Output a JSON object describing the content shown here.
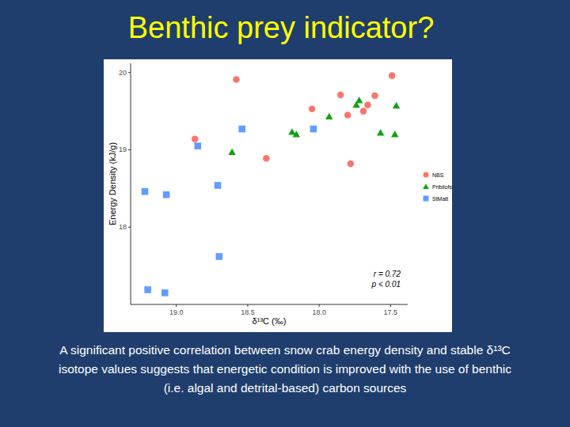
{
  "chart_data": {
    "type": "scatter",
    "title": "Benthic prey indicator?",
    "x_label": "δ¹³C (‰)",
    "y_label": "Energy Density (kJ/g)",
    "annotations": [
      "r = 0.72",
      "p < 0.01"
    ],
    "caption": [
      "A significant positive correlation between snow crab energy density and stable δ¹³C",
      "isotope values suggests that energetic condition is improved with the use of benthic",
      "(i.e. algal and detrital-based) carbon sources"
    ],
    "xlim": [
      19.32,
      17.38
    ],
    "ylim": [
      17.0,
      20.12
    ],
    "xticks": [
      {
        "value": 19,
        "label": "19.0"
      },
      18.5,
      {
        "value": 18,
        "label": "18.0"
      },
      17.5
    ],
    "yticks": [
      18,
      19,
      20
    ],
    "grid": false,
    "legend": "right",
    "series": [
      {
        "name": "NBS",
        "color": "#f8766d",
        "marker": "circle",
        "x": [
          18.87,
          18.58,
          18.37,
          18.05,
          17.85,
          17.8,
          17.78,
          17.69,
          17.66,
          17.61,
          17.49
        ],
        "values": [
          19.14,
          19.91,
          18.89,
          19.53,
          19.71,
          19.45,
          18.82,
          19.5,
          19.58,
          19.7,
          19.96
        ]
      },
      {
        "name": "Pribilofs",
        "color": "#12a012",
        "marker": "triangle",
        "x": [
          18.61,
          18.19,
          18.16,
          17.93,
          17.74,
          17.72,
          17.57,
          17.47,
          17.46
        ],
        "values": [
          18.97,
          19.23,
          19.2,
          19.43,
          19.58,
          19.64,
          19.22,
          19.2,
          19.57
        ]
      },
      {
        "name": "StMatt",
        "color": "#619cff",
        "marker": "square",
        "x": [
          19.22,
          19.07,
          18.85,
          18.71,
          18.7,
          18.54,
          18.04,
          19.2,
          19.08
        ],
        "values": [
          18.46,
          18.42,
          19.05,
          18.54,
          17.62,
          19.27,
          19.27,
          17.19,
          17.15
        ]
      }
    ]
  }
}
